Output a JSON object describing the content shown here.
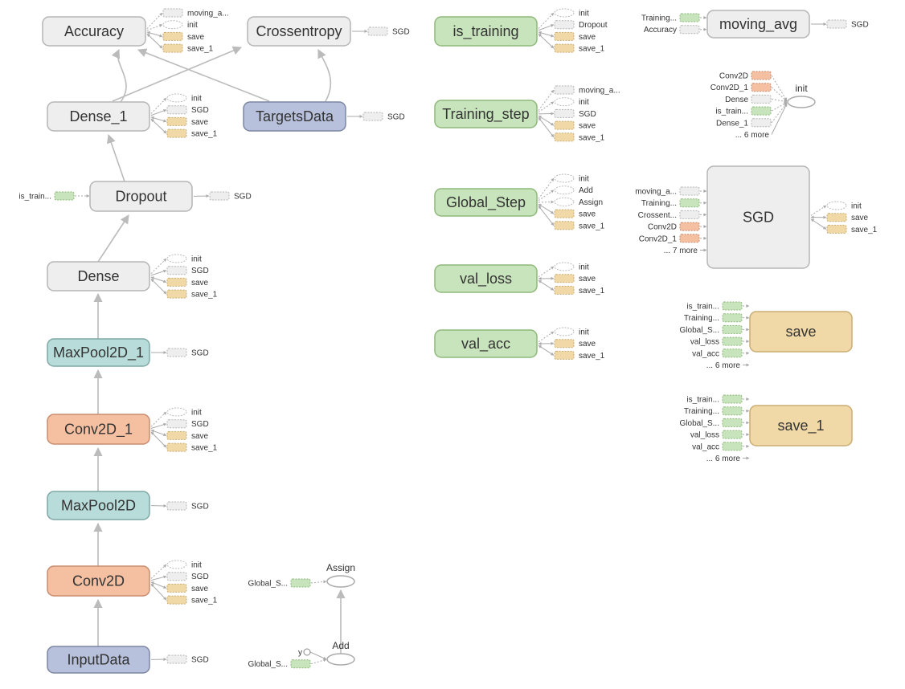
{
  "colors": {
    "gray": "#eeeeee",
    "green": "#c8e4bc",
    "orange": "#f5bfa2",
    "tan": "#f0d9a7",
    "teal": "#b8dcda",
    "blue": "#b8c1dc",
    "edge": "#bbbbbb"
  },
  "nodes": [
    {
      "label": "Accuracy",
      "kind": "gray",
      "outputs": [
        {
          "label": "moving_a...",
          "kind": "gray"
        },
        {
          "label": "init",
          "kind": "ellipse"
        },
        {
          "label": "save",
          "kind": "tan"
        },
        {
          "label": "save_1",
          "kind": "tan"
        }
      ]
    },
    {
      "label": "Crossentropy",
      "kind": "gray",
      "outputs": [
        {
          "label": "SGD",
          "kind": "gray"
        }
      ]
    },
    {
      "label": "Dense_1",
      "kind": "gray",
      "outputs": [
        {
          "label": "init",
          "kind": "ellipse"
        },
        {
          "label": "SGD",
          "kind": "gray"
        },
        {
          "label": "save",
          "kind": "tan"
        },
        {
          "label": "save_1",
          "kind": "tan"
        }
      ]
    },
    {
      "label": "TargetsData",
      "kind": "blue",
      "outputs": [
        {
          "label": "SGD",
          "kind": "gray"
        }
      ]
    },
    {
      "label": "Dropout",
      "kind": "gray",
      "inputs": [
        {
          "label": "is_train...",
          "kind": "green"
        }
      ],
      "outputs": [
        {
          "label": "SGD",
          "kind": "gray"
        }
      ]
    },
    {
      "label": "Dense",
      "kind": "gray",
      "outputs": [
        {
          "label": "init",
          "kind": "ellipse"
        },
        {
          "label": "SGD",
          "kind": "gray"
        },
        {
          "label": "save",
          "kind": "tan"
        },
        {
          "label": "save_1",
          "kind": "tan"
        }
      ]
    },
    {
      "label": "MaxPool2D_1",
      "kind": "teal",
      "outputs": [
        {
          "label": "SGD",
          "kind": "gray"
        }
      ]
    },
    {
      "label": "Conv2D_1",
      "kind": "orange",
      "outputs": [
        {
          "label": "init",
          "kind": "ellipse"
        },
        {
          "label": "SGD",
          "kind": "gray"
        },
        {
          "label": "save",
          "kind": "tan"
        },
        {
          "label": "save_1",
          "kind": "tan"
        }
      ]
    },
    {
      "label": "MaxPool2D",
      "kind": "teal",
      "outputs": [
        {
          "label": "SGD",
          "kind": "gray"
        }
      ]
    },
    {
      "label": "Conv2D",
      "kind": "orange",
      "outputs": [
        {
          "label": "init",
          "kind": "ellipse"
        },
        {
          "label": "SGD",
          "kind": "gray"
        },
        {
          "label": "save",
          "kind": "tan"
        },
        {
          "label": "save_1",
          "kind": "tan"
        }
      ]
    },
    {
      "label": "InputData",
      "kind": "blue",
      "outputs": [
        {
          "label": "SGD",
          "kind": "gray"
        }
      ]
    },
    {
      "label": "is_training",
      "kind": "green",
      "outputs": [
        {
          "label": "init",
          "kind": "ellipse"
        },
        {
          "label": "Dropout",
          "kind": "gray"
        },
        {
          "label": "save",
          "kind": "tan"
        },
        {
          "label": "save_1",
          "kind": "tan"
        }
      ]
    },
    {
      "label": "Training_step",
      "kind": "green",
      "outputs": [
        {
          "label": "moving_a...",
          "kind": "gray"
        },
        {
          "label": "init",
          "kind": "ellipse"
        },
        {
          "label": "SGD",
          "kind": "gray"
        },
        {
          "label": "save",
          "kind": "tan"
        },
        {
          "label": "save_1",
          "kind": "tan"
        }
      ]
    },
    {
      "label": "Global_Step",
      "kind": "green",
      "outputs": [
        {
          "label": "init",
          "kind": "ellipse"
        },
        {
          "label": "Add",
          "kind": "ellipse"
        },
        {
          "label": "Assign",
          "kind": "ellipse"
        },
        {
          "label": "save",
          "kind": "tan"
        },
        {
          "label": "save_1",
          "kind": "tan"
        }
      ]
    },
    {
      "label": "val_loss",
      "kind": "green",
      "outputs": [
        {
          "label": "init",
          "kind": "ellipse"
        },
        {
          "label": "save",
          "kind": "tan"
        },
        {
          "label": "save_1",
          "kind": "tan"
        }
      ]
    },
    {
      "label": "val_acc",
      "kind": "green",
      "outputs": [
        {
          "label": "init",
          "kind": "ellipse"
        },
        {
          "label": "save",
          "kind": "tan"
        },
        {
          "label": "save_1",
          "kind": "tan"
        }
      ]
    },
    {
      "label": "moving_avg",
      "kind": "gray",
      "inputs": [
        {
          "label": "Training...",
          "kind": "green"
        },
        {
          "label": "Accuracy",
          "kind": "gray"
        }
      ],
      "outputs": [
        {
          "label": "SGD",
          "kind": "gray"
        }
      ]
    },
    {
      "label": "SGD",
      "kind": "gray",
      "inputs": [
        {
          "label": "moving_a...",
          "kind": "gray"
        },
        {
          "label": "Training...",
          "kind": "green"
        },
        {
          "label": "Crossent...",
          "kind": "gray"
        },
        {
          "label": "Conv2D",
          "kind": "orange"
        },
        {
          "label": "Conv2D_1",
          "kind": "orange"
        },
        {
          "label": "... 7 more",
          "kind": "more"
        }
      ],
      "outputs": [
        {
          "label": "init",
          "kind": "ellipse"
        },
        {
          "label": "save",
          "kind": "tan"
        },
        {
          "label": "save_1",
          "kind": "tan"
        }
      ]
    },
    {
      "label": "save",
      "kind": "tan",
      "inputs": [
        {
          "label": "is_train...",
          "kind": "green"
        },
        {
          "label": "Training...",
          "kind": "green"
        },
        {
          "label": "Global_S...",
          "kind": "green"
        },
        {
          "label": "val_loss",
          "kind": "green"
        },
        {
          "label": "val_acc",
          "kind": "green"
        },
        {
          "label": "... 6 more",
          "kind": "more"
        }
      ]
    },
    {
      "label": "save_1",
      "kind": "tan",
      "inputs": [
        {
          "label": "is_train...",
          "kind": "green"
        },
        {
          "label": "Training...",
          "kind": "green"
        },
        {
          "label": "Global_S...",
          "kind": "green"
        },
        {
          "label": "val_loss",
          "kind": "green"
        },
        {
          "label": "val_acc",
          "kind": "green"
        },
        {
          "label": "... 6 more",
          "kind": "more"
        }
      ]
    }
  ],
  "ops": [
    {
      "label": "init",
      "inputs": [
        {
          "label": "Conv2D",
          "kind": "orange"
        },
        {
          "label": "Conv2D_1",
          "kind": "orange"
        },
        {
          "label": "Dense",
          "kind": "gray"
        },
        {
          "label": "is_train...",
          "kind": "green"
        },
        {
          "label": "Dense_1",
          "kind": "gray"
        },
        {
          "label": "... 6 more",
          "kind": "more"
        }
      ]
    },
    {
      "label": "Assign",
      "inputs": [
        {
          "label": "Global_S...",
          "kind": "green"
        }
      ]
    },
    {
      "label": "Add",
      "inputs": [
        {
          "label": "y",
          "kind": "const"
        },
        {
          "label": "Global_S...",
          "kind": "green"
        }
      ]
    }
  ]
}
